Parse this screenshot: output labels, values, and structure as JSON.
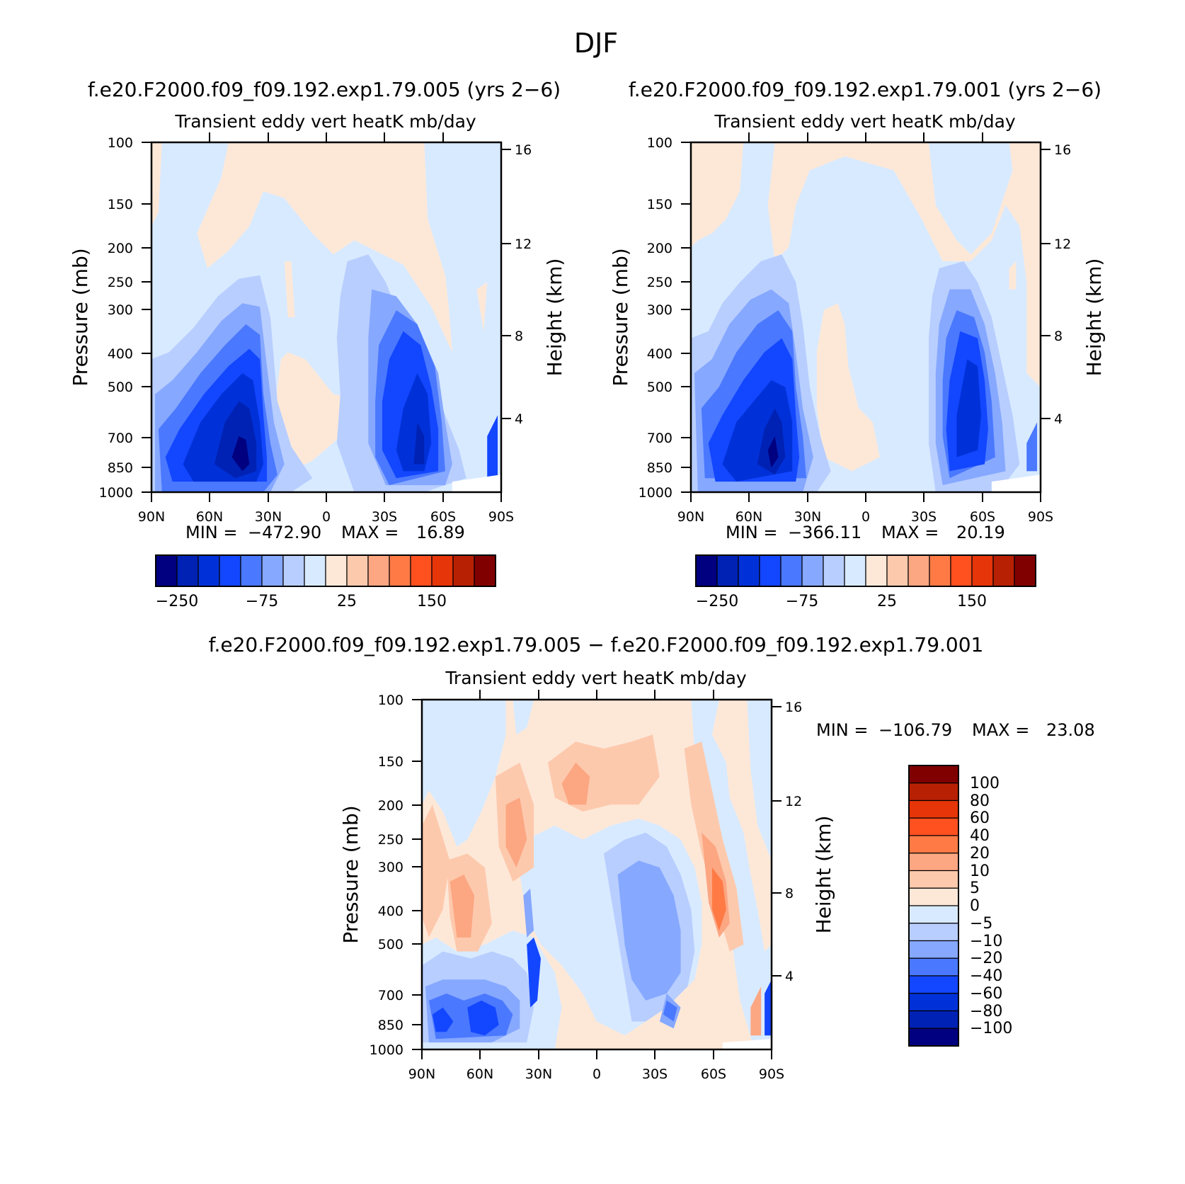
{
  "figure": {
    "title": "DJF"
  },
  "chart_data": [
    {
      "type": "heatmap",
      "panel": "top-left",
      "case_title": "f.e20.F2000.f09_f09.192.exp1.79.005 (yrs 2−6)",
      "title": "Transient eddy vert heatK mb/day",
      "ylabel": "Pressure (mb)",
      "ylabel_right": "Height (km)",
      "x_ticks": [
        "90N",
        "60N",
        "30N",
        "0",
        "30S",
        "60S",
        "90S"
      ],
      "y_ticks": [
        "100",
        "150",
        "200",
        "250",
        "300",
        "400",
        "500",
        "700",
        "850",
        "1000"
      ],
      "height_ticks": [
        "16",
        "12",
        "8",
        "4"
      ],
      "ylim": [
        1000,
        100
      ],
      "stats": {
        "min_label": "MIN =",
        "min": "−472.90",
        "max_label": "MAX =",
        "max": "16.89"
      },
      "colorbar": {
        "orientation": "horizontal",
        "tick_labels": [
          "−250",
          "−75",
          "25",
          "150"
        ],
        "colors": [
          "#000080",
          "#0022b4",
          "#0031d8",
          "#1346ff",
          "#4a78ff",
          "#86a8ff",
          "#b8ceff",
          "#d8eaff",
          "#fde8d8",
          "#fdc9ad",
          "#fca682",
          "#ff7a45",
          "#ff5020",
          "#e63508",
          "#b82004",
          "#800000"
        ]
      },
      "features": [
        {
          "name": "NH storm-track minimum",
          "lat": 45,
          "pressure": 850,
          "value": -472.9
        },
        {
          "name": "SH storm-track minimum",
          "lat": -55,
          "pressure": 700,
          "value": -300
        }
      ]
    },
    {
      "type": "heatmap",
      "panel": "top-right",
      "case_title": "f.e20.F2000.f09_f09.192.exp1.79.001 (yrs 2−6)",
      "title": "Transient eddy vert heatK mb/day",
      "ylabel": "Pressure (mb)",
      "ylabel_right": "Height (km)",
      "x_ticks": [
        "90N",
        "60N",
        "30N",
        "0",
        "30S",
        "60S",
        "90S"
      ],
      "y_ticks": [
        "100",
        "150",
        "200",
        "250",
        "300",
        "400",
        "500",
        "700",
        "850",
        "1000"
      ],
      "height_ticks": [
        "16",
        "12",
        "8",
        "4"
      ],
      "ylim": [
        1000,
        100
      ],
      "stats": {
        "min_label": "MIN =",
        "min": "−366.11",
        "max_label": "MAX =",
        "max": "20.19"
      },
      "colorbar": {
        "orientation": "horizontal",
        "tick_labels": [
          "−250",
          "−75",
          "25",
          "150"
        ],
        "colors": [
          "#000080",
          "#0022b4",
          "#0031d8",
          "#1346ff",
          "#4a78ff",
          "#86a8ff",
          "#b8ceff",
          "#d8eaff",
          "#fde8d8",
          "#fdc9ad",
          "#fca682",
          "#ff7a45",
          "#ff5020",
          "#e63508",
          "#b82004",
          "#800000"
        ]
      },
      "features": [
        {
          "name": "NH storm-track minimum",
          "lat": 42,
          "pressure": 850,
          "value": -366.11
        },
        {
          "name": "SH storm-track minimum",
          "lat": -55,
          "pressure": 700,
          "value": -280
        }
      ]
    },
    {
      "type": "heatmap",
      "panel": "bottom",
      "case_title": "f.e20.F2000.f09_f09.192.exp1.79.005 − f.e20.F2000.f09_f09.192.exp1.79.001",
      "title": "Transient eddy vert heatK mb/day",
      "ylabel": "Pressure (mb)",
      "ylabel_right": "Height (km)",
      "x_ticks": [
        "90N",
        "60N",
        "30N",
        "0",
        "30S",
        "60S",
        "90S"
      ],
      "y_ticks": [
        "100",
        "150",
        "200",
        "250",
        "300",
        "400",
        "500",
        "700",
        "850",
        "1000"
      ],
      "height_ticks": [
        "16",
        "12",
        "8",
        "4"
      ],
      "ylim": [
        1000,
        100
      ],
      "stats": {
        "min_label": "MIN =",
        "min": "−106.79",
        "max_label": "MAX =",
        "max": "23.08"
      },
      "colorbar": {
        "orientation": "vertical",
        "tick_labels": [
          "100",
          "80",
          "60",
          "40",
          "20",
          "10",
          "5",
          "0",
          "−5",
          "−10",
          "−20",
          "−40",
          "−60",
          "−80",
          "−100"
        ],
        "colors": [
          "#800000",
          "#b82004",
          "#e63508",
          "#ff5020",
          "#ff7a45",
          "#fca682",
          "#fdc9ad",
          "#fde8d8",
          "#d8eaff",
          "#b8ceff",
          "#86a8ff",
          "#4a78ff",
          "#1346ff",
          "#0031d8",
          "#0022b4",
          "#000080"
        ]
      },
      "features": [
        {
          "name": "NH low-level negative difference",
          "lat": 65,
          "pressure": 850,
          "value": -60
        },
        {
          "name": "SH mid-level positive difference",
          "lat": -62,
          "pressure": 450,
          "value": 23.08
        },
        {
          "name": "SH mid-level negative difference",
          "lat": -35,
          "pressure": 400,
          "value": -20
        }
      ]
    }
  ]
}
